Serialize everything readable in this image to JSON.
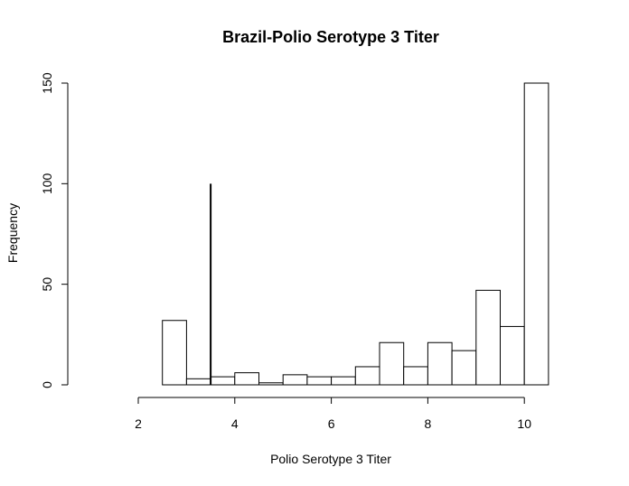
{
  "chart_data": {
    "type": "bar",
    "title": "Brazil-Polio Serotype 3 Titer",
    "xlabel": "Polio Serotype 3 Titer",
    "ylabel": "Frequency",
    "xlim": [
      2,
      10
    ],
    "ylim": [
      0,
      150
    ],
    "x_ticks": [
      "2",
      "4",
      "6",
      "8",
      "10"
    ],
    "y_ticks": [
      "0",
      "50",
      "100",
      "150"
    ],
    "grid": false,
    "bins": [
      {
        "x0": 2.5,
        "x1": 3.0,
        "value": 32
      },
      {
        "x0": 3.0,
        "x1": 3.5,
        "value": 3
      },
      {
        "x0": 3.5,
        "x1": 4.0,
        "value": 4
      },
      {
        "x0": 4.0,
        "x1": 4.5,
        "value": 6
      },
      {
        "x0": 4.5,
        "x1": 5.0,
        "value": 1
      },
      {
        "x0": 5.0,
        "x1": 5.5,
        "value": 5
      },
      {
        "x0": 5.5,
        "x1": 6.0,
        "value": 4
      },
      {
        "x0": 6.0,
        "x1": 6.5,
        "value": 4
      },
      {
        "x0": 6.5,
        "x1": 7.0,
        "value": 9
      },
      {
        "x0": 7.0,
        "x1": 7.5,
        "value": 21
      },
      {
        "x0": 7.5,
        "x1": 8.0,
        "value": 9
      },
      {
        "x0": 8.0,
        "x1": 8.5,
        "value": 21
      },
      {
        "x0": 8.5,
        "x1": 9.0,
        "value": 17
      },
      {
        "x0": 9.0,
        "x1": 9.5,
        "value": 47
      },
      {
        "x0": 9.5,
        "x1": 10.0,
        "value": 29
      },
      {
        "x0": 10.0,
        "x1": 10.5,
        "value": 150
      }
    ],
    "reference_line": {
      "x": 3.5,
      "y0": 0,
      "y1": 100
    }
  }
}
